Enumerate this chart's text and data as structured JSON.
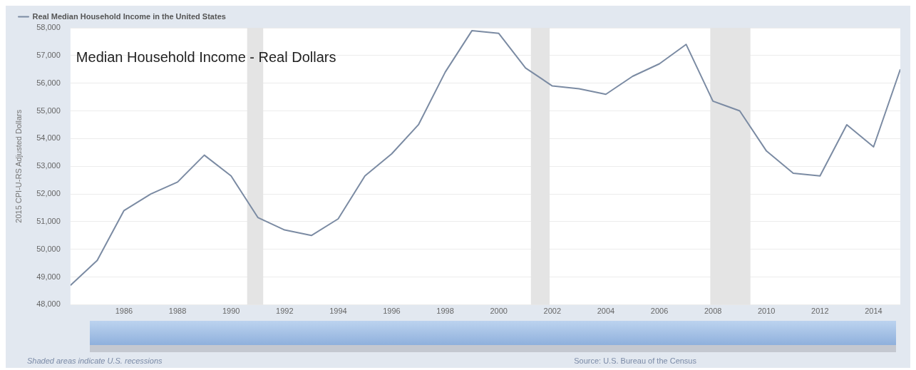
{
  "chart_data": {
    "type": "line",
    "title": "Median Household Income - Real Dollars",
    "ylabel": "2015 CPI-U-RS Adjusted Dollars",
    "x": [
      1984,
      1985,
      1986,
      1987,
      1988,
      1989,
      1990,
      1991,
      1992,
      1993,
      1994,
      1995,
      1996,
      1997,
      1998,
      1999,
      2000,
      2001,
      2002,
      2003,
      2004,
      2005,
      2006,
      2007,
      2008,
      2009,
      2010,
      2011,
      2012,
      2013,
      2014,
      2015
    ],
    "series": [
      {
        "name": "Real Median Household Income in the United States",
        "color": "#7b8ba3",
        "values": [
          48700,
          49600,
          51400,
          52000,
          52430,
          53400,
          52650,
          51150,
          50700,
          50500,
          51100,
          52650,
          53450,
          54500,
          56400,
          57900,
          57800,
          56550,
          55900,
          55800,
          55600,
          56250,
          56700,
          57400,
          55350,
          55000,
          53550,
          52750,
          52650,
          54500,
          53700,
          56500
        ]
      }
    ],
    "xlim": [
      1984,
      2015
    ],
    "xticks": [
      1986,
      1988,
      1990,
      1992,
      1994,
      1996,
      1998,
      2000,
      2002,
      2004,
      2006,
      2008,
      2010,
      2012,
      2014
    ],
    "ylim": [
      48000,
      58000
    ],
    "yticks": [
      {
        "value": 48000,
        "label": "48,000"
      },
      {
        "value": 49000,
        "label": "49,000"
      },
      {
        "value": 50000,
        "label": "50,000"
      },
      {
        "value": 51000,
        "label": "51,000"
      },
      {
        "value": 52000,
        "label": "52,000"
      },
      {
        "value": 53000,
        "label": "53,000"
      },
      {
        "value": 54000,
        "label": "54,000"
      },
      {
        "value": 55000,
        "label": "55,000"
      },
      {
        "value": 56000,
        "label": "56,000"
      },
      {
        "value": 57000,
        "label": "57,000"
      },
      {
        "value": 58000,
        "label": "58,000"
      }
    ],
    "bands": [
      {
        "axis": "x",
        "from": 1990.6,
        "to": 1991.2,
        "color": "#e4e4e4"
      },
      {
        "axis": "x",
        "from": 2001.2,
        "to": 2001.9,
        "color": "#e4e4e4"
      },
      {
        "axis": "x",
        "from": 2007.9,
        "to": 2009.4,
        "color": "#e4e4e4"
      }
    ],
    "grid": "y",
    "legend": "top left",
    "marker": "none",
    "line_style": "solid",
    "annotations": [
      "Shaded areas indicate U.S. recessions",
      "Source: U.S. Bureau of the Census"
    ]
  }
}
